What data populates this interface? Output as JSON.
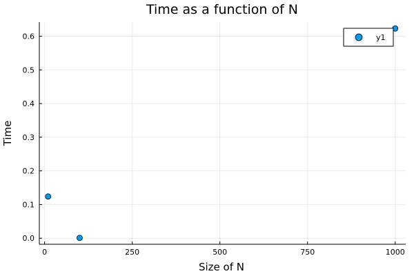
{
  "chart_data": {
    "type": "scatter",
    "title": "Time as a function of N",
    "xlabel": "Size of N",
    "ylabel": "Time",
    "xlim": [
      -15,
      1030
    ],
    "ylim": [
      -0.018,
      0.642
    ],
    "xticks": [
      0,
      250,
      500,
      750,
      1000
    ],
    "xtick_labels": [
      "0",
      "250",
      "500",
      "750",
      "1000"
    ],
    "yticks": [
      0.0,
      0.1,
      0.2,
      0.3,
      0.4,
      0.5,
      0.6
    ],
    "ytick_labels": [
      "0.0",
      "0.1",
      "0.2",
      "0.3",
      "0.4",
      "0.5",
      "0.6"
    ],
    "grid": true,
    "legend_position": "top-right",
    "series": [
      {
        "name": "y1",
        "color": "#009AFA",
        "x": [
          10,
          100,
          1000
        ],
        "y": [
          0.124,
          0.001,
          0.623
        ]
      }
    ]
  }
}
